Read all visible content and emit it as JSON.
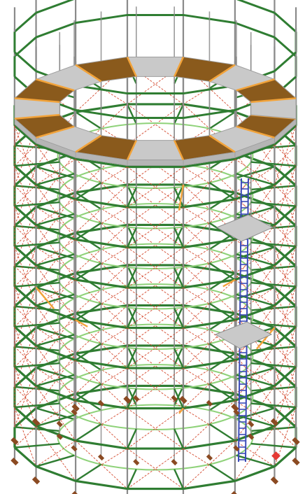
{
  "scene": {
    "name": "circular-scaffold-tower-3d-view",
    "posts": 16,
    "levels": 9,
    "deck_panels": 16,
    "stair_side": "front-right"
  },
  "colors": {
    "background": "#ffffff",
    "ledger": "#2f7d32",
    "ledger_inner": "#8fd27a",
    "standard": "#8a8a8a",
    "brace": "#d44a2f",
    "deck_gray": "#c9c9c9",
    "deck_brown": "#8a5a1c",
    "orange_member": "#f2a33a",
    "ladder": "#3b4ab8",
    "base_plate": "#8b4a22",
    "support_marker": "#e53935"
  }
}
